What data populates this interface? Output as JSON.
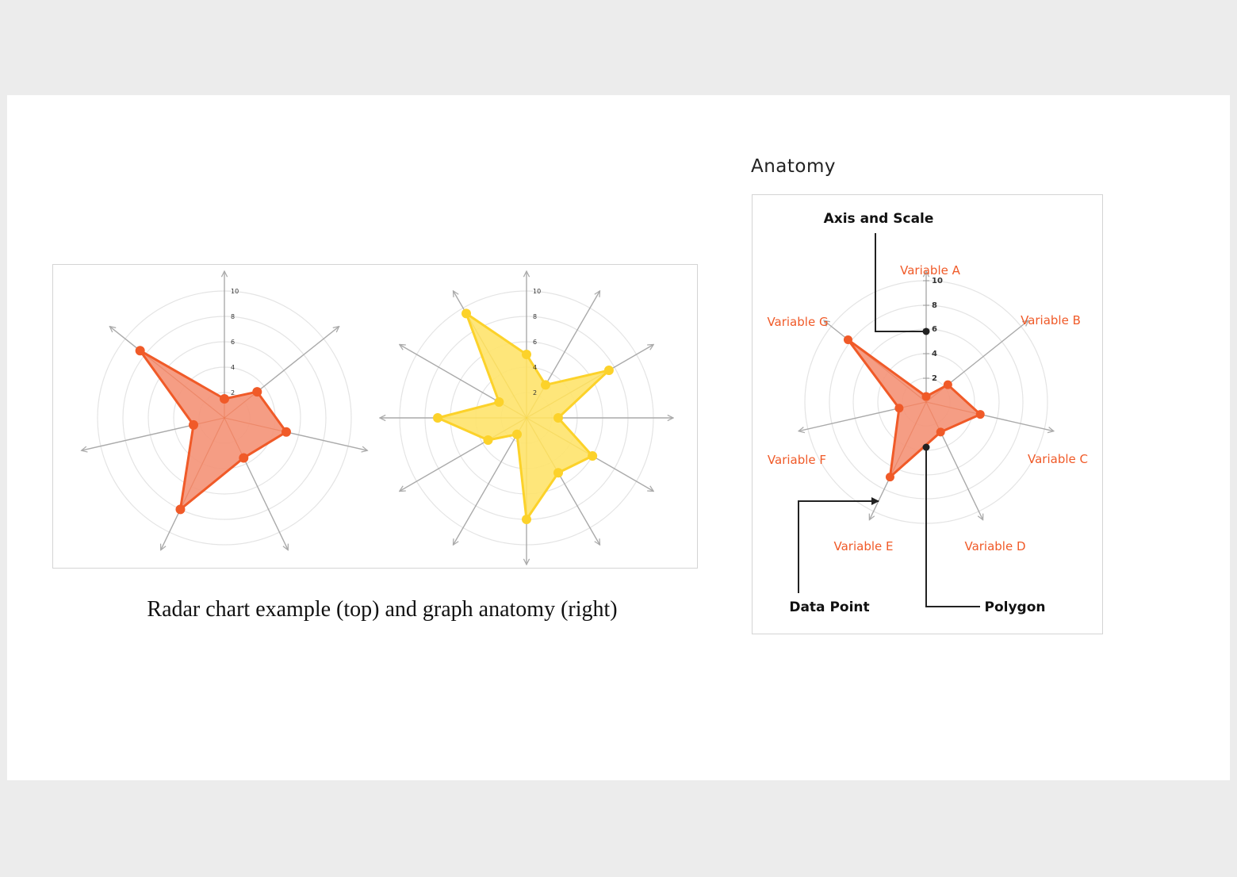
{
  "anatomy_title": "Anatomy",
  "caption": "Radar chart example (top) and graph anatomy (right)",
  "colors": {
    "orange_line": "#f05a28",
    "orange_fill": "#f4957a",
    "yellow_line": "#fcd22a",
    "yellow_fill": "#fee46f",
    "grid": "#e4e4e4",
    "axis": "#aaaaaa"
  },
  "chart_data": [
    {
      "type": "radar",
      "color": "orange",
      "scale_max": 10,
      "ticks": [
        "2",
        "4",
        "6",
        "8",
        "10"
      ],
      "values": [
        1.5,
        3.3,
        5.0,
        3.5,
        8.0,
        2.5,
        8.5
      ]
    },
    {
      "type": "radar",
      "color": "yellow",
      "scale_max": 10,
      "ticks": [
        "2",
        "4",
        "6",
        "8",
        "10"
      ],
      "values": [
        5.0,
        3.0,
        7.5,
        2.5,
        6.0,
        5.0,
        8.0,
        1.5,
        3.5,
        7.0,
        2.5,
        9.5
      ]
    },
    {
      "type": "radar",
      "color": "orange",
      "scale_max": 10,
      "ticks": [
        "2",
        "4",
        "6",
        "8",
        "10"
      ],
      "categories": [
        "Variable A",
        "Variable B",
        "Variable C",
        "Variable D",
        "Variable E",
        "Variable F",
        "Variable G"
      ],
      "values": [
        0.5,
        2.5,
        5.0,
        3.0,
        7.5,
        2.5,
        9.0
      ],
      "annotations": [
        "Axis and Scale",
        "Data Point",
        "Polygon"
      ]
    }
  ]
}
